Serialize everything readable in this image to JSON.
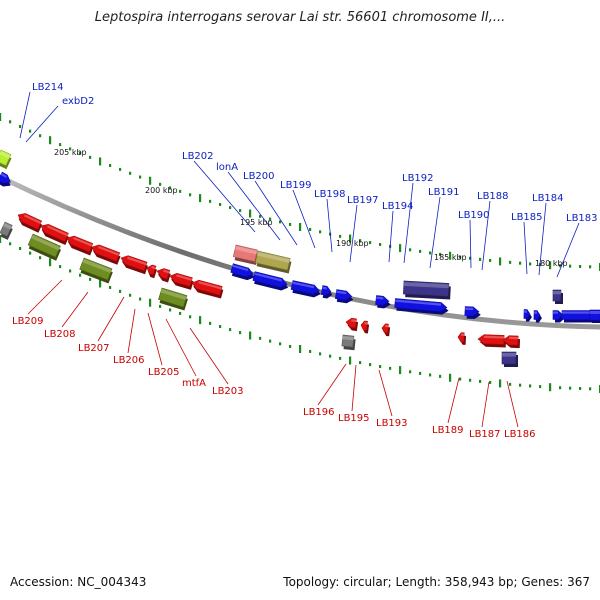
{
  "header": {
    "title": "Leptospira interrogans serovar Lai str. 56601 chromosome II,..."
  },
  "footer": {
    "accession": "Accession: NC_004343",
    "summary": "Topology: circular; Length: 358,943 bp; Genes: 367"
  },
  "colors": {
    "forward_gene": "#1010e0",
    "reverse_gene": "#e01010",
    "backbone": "#8a8a8a",
    "tick": "#1a8a1a",
    "label_forward": "#0b1fbf",
    "label_reverse": "#c80000",
    "feature_olive": "#6e8c1f",
    "feature_purple": "#3b3488",
    "feature_salmon": "#e87878",
    "feature_khaki": "#b0a650",
    "feature_gray": "#7a7a7a",
    "feature_lime": "#b8ee30"
  },
  "kbp_markers": [
    "205 kbp",
    "200 kbp",
    "195 kbp",
    "190 kbp",
    "185 kbp",
    "180 kbp"
  ],
  "forward_labels": [
    "LB214",
    "exbD2",
    "LB202",
    "lonA",
    "LB200",
    "LB199",
    "LB198",
    "LB197",
    "LB194",
    "LB192",
    "LB191",
    "LB190",
    "LB188",
    "LB185",
    "LB184",
    "LB183"
  ],
  "reverse_labels": [
    "LB209",
    "LB208",
    "LB207",
    "LB206",
    "LB205",
    "mtfA",
    "LB203",
    "LB196",
    "LB195",
    "LB193",
    "LB189",
    "LB187",
    "LB186"
  ]
}
